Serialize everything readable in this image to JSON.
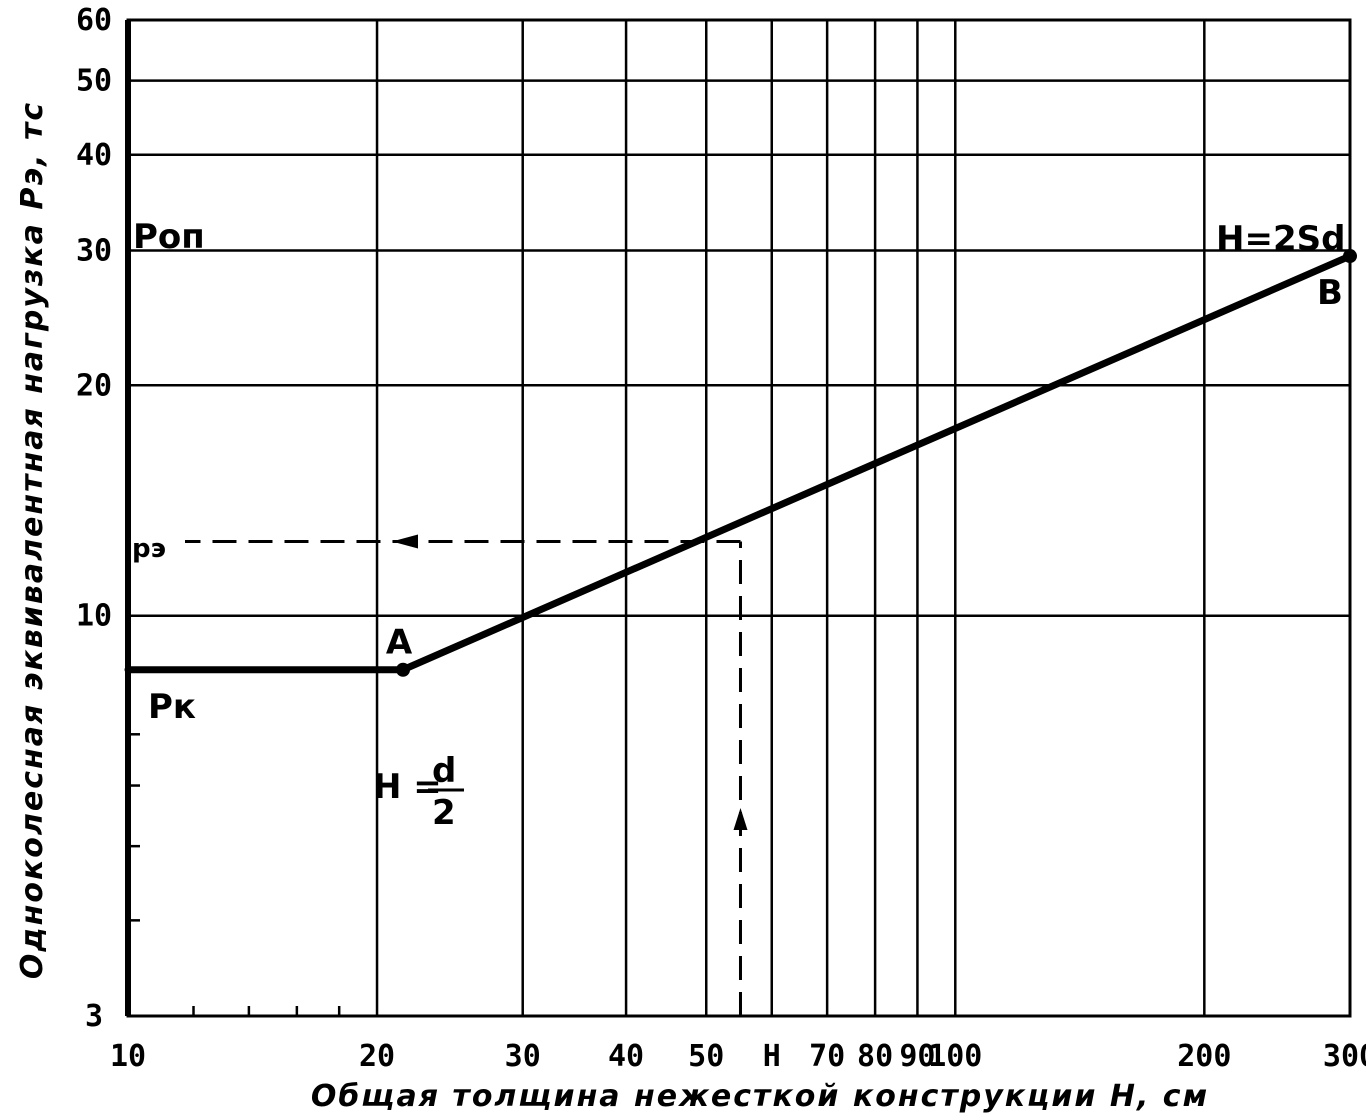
{
  "chart_data": {
    "type": "line",
    "title": "",
    "xlabel": "Общая толщина нежесткой конструкции  H, см",
    "ylabel": "Одноколесная эквивалентная нагрузка  Pэ, тс",
    "x_scale": "log",
    "y_scale": "log",
    "xlim": [
      10,
      300
    ],
    "ylim": [
      3,
      60
    ],
    "grid": true,
    "x_ticks": [
      {
        "value": 10,
        "label": "10"
      },
      {
        "value": 20,
        "label": "20"
      },
      {
        "value": 30,
        "label": "30"
      },
      {
        "value": 40,
        "label": "40"
      },
      {
        "value": 50,
        "label": "50"
      },
      {
        "value": 60,
        "label": "H"
      },
      {
        "value": 70,
        "label": "70"
      },
      {
        "value": 80,
        "label": "80"
      },
      {
        "value": 90,
        "label": "90"
      },
      {
        "value": 100,
        "label": "100"
      },
      {
        "value": 200,
        "label": "200"
      },
      {
        "value": 300,
        "label": "300"
      }
    ],
    "x_minor": [
      12,
      14,
      16,
      18
    ],
    "y_ticks": [
      {
        "value": 3,
        "label": "3"
      },
      {
        "value": 10,
        "label": "10"
      },
      {
        "value": 20,
        "label": "20"
      },
      {
        "value": 30,
        "label": "30"
      },
      {
        "value": 40,
        "label": "40"
      },
      {
        "value": 50,
        "label": "50"
      },
      {
        "value": 60,
        "label": "60"
      }
    ],
    "y_minor": [
      4,
      5,
      6,
      7
    ],
    "series": [
      {
        "x": [
          10,
          21.5,
          300
        ],
        "y": [
          8.5,
          8.5,
          29.5
        ]
      }
    ],
    "points": [
      {
        "x": 21.5,
        "y": 8.5,
        "label": "A"
      },
      {
        "x": 300,
        "y": 29.5,
        "label": "B"
      }
    ],
    "guide": {
      "x": 55,
      "y": 12.5
    },
    "annotations": {
      "p_op": "Pоп",
      "p_k": "Pк",
      "p_e": "pэ",
      "eq_B": "H=2Sd",
      "eq_A_left": "H =",
      "eq_A_num": "d",
      "eq_A_den": "2"
    }
  }
}
